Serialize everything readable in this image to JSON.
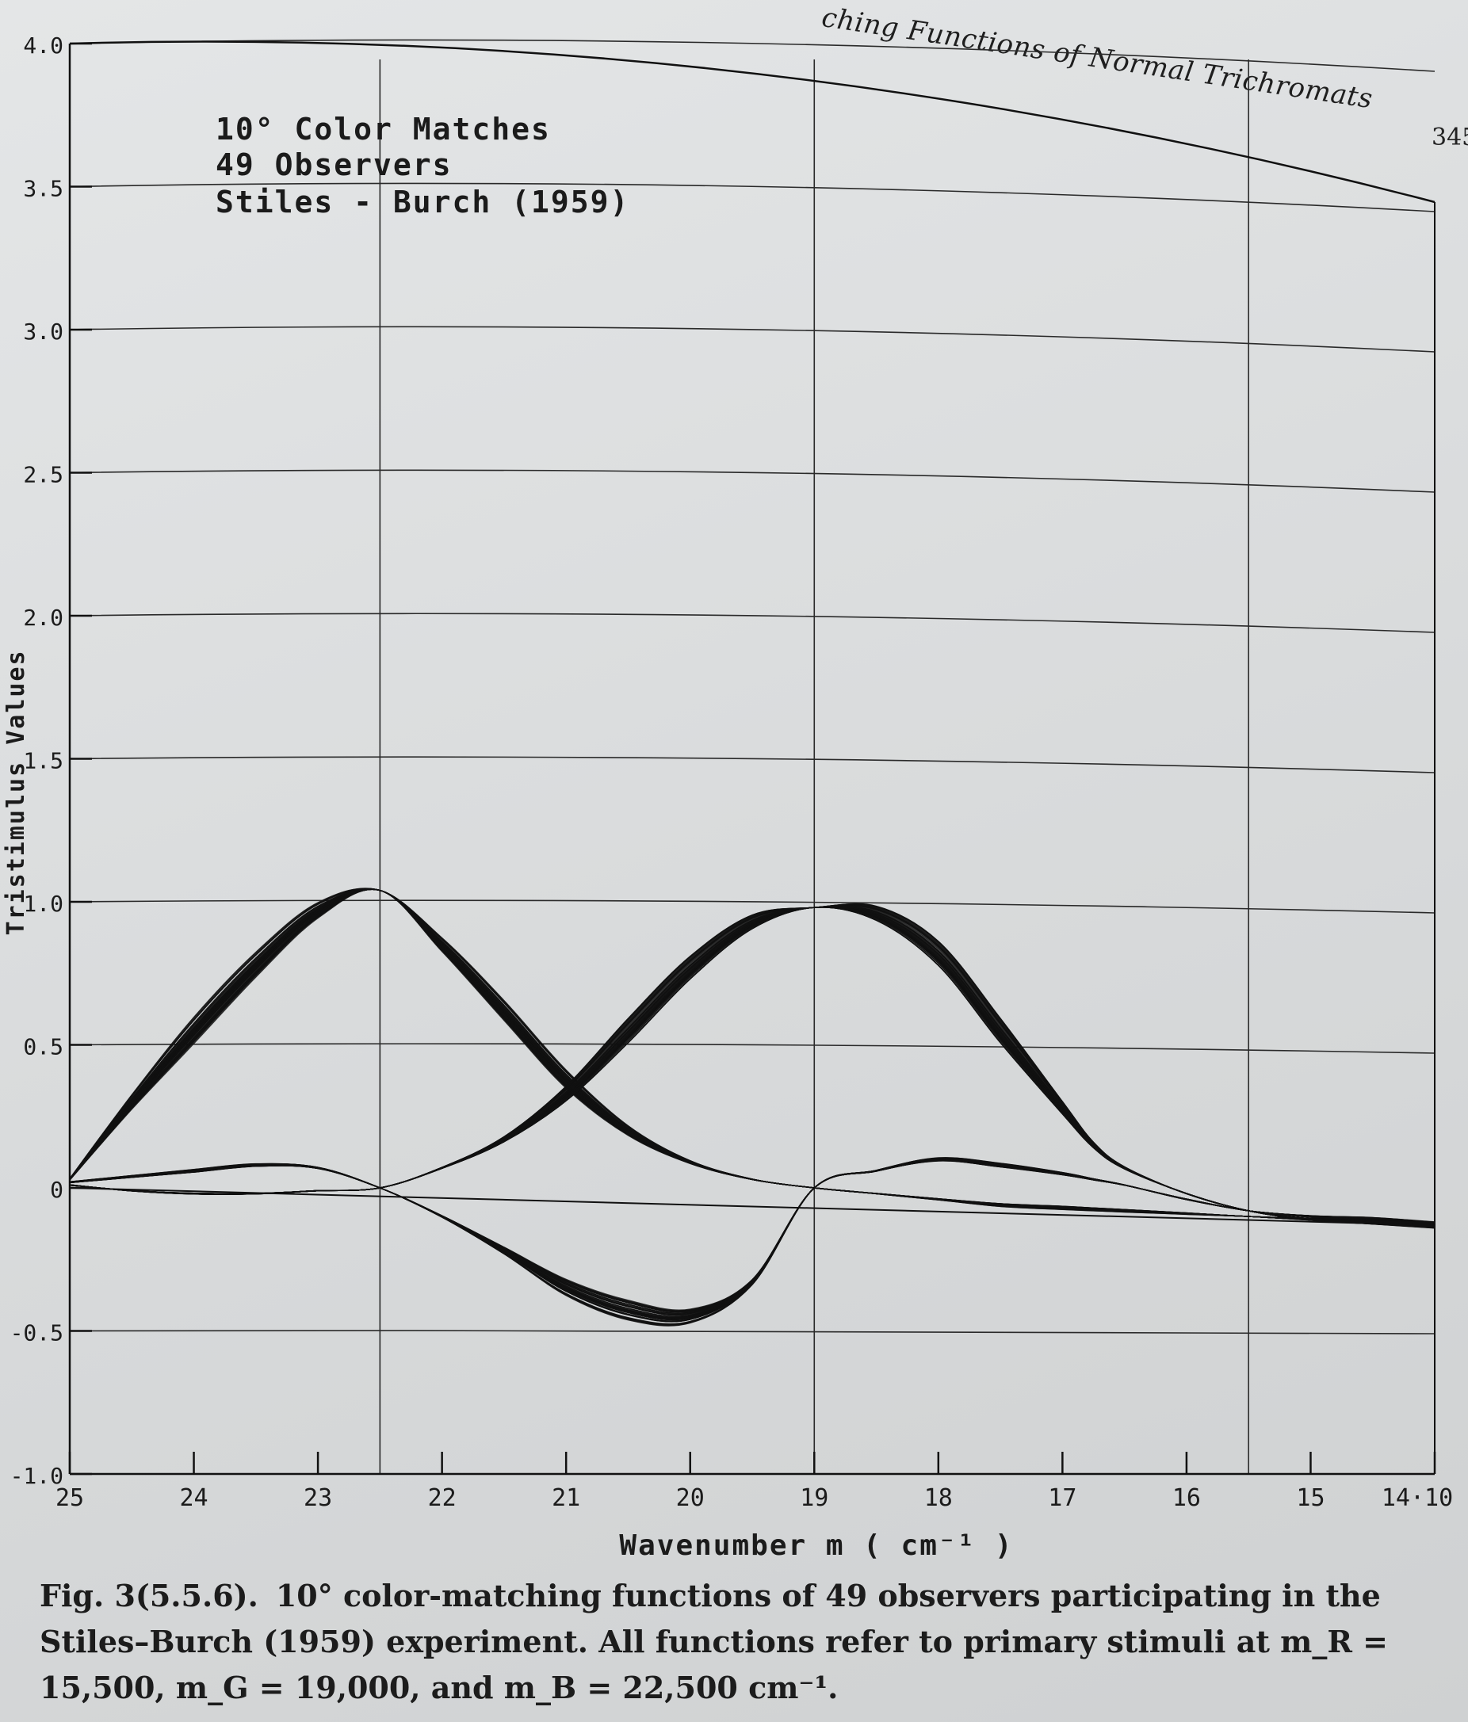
{
  "running_head": "ching Functions of Normal Trichromats",
  "page_number": "345",
  "annotation": {
    "line1": "10° Color Matches",
    "line2": "49 Observers",
    "line3": "Stiles - Burch (1959)"
  },
  "caption": {
    "label": "Fig. 3(5.5.6).",
    "text": "10° color-matching functions of 49 observers participating in the Stiles–Burch (1959) experiment. All functions refer to primary stimuli at m_R = 15,500, m_G = 19,000, and m_B = 22,500 cm⁻¹."
  },
  "colors": {
    "ink": "#111111",
    "grid": "#2a2a2a",
    "paper": "#dcdedf"
  },
  "chart_data": {
    "type": "line",
    "title": "10° Color Matches 49 Observers Stiles - Burch (1959)",
    "xlabel": "Wavenumber m ( cm⁻¹ )",
    "ylabel": "Tristimulus Values",
    "xlim": [
      25,
      14
    ],
    "ylim": [
      -1.0,
      4.0
    ],
    "x_reversed": true,
    "x_ticks": [
      25,
      24,
      23,
      22,
      21,
      20,
      19,
      18,
      17,
      16,
      15,
      14
    ],
    "x_tick_labels": [
      "25",
      "24",
      "23",
      "22",
      "21",
      "20",
      "19",
      "18",
      "17",
      "16",
      "15",
      "14·10"
    ],
    "y_ticks": [
      -1.0,
      -0.5,
      0,
      0.5,
      1.0,
      1.5,
      2.0,
      2.5,
      3.0,
      3.5,
      4.0
    ],
    "y_tick_labels": [
      "-1.0",
      "-0.5",
      "0",
      "0.5",
      "1.0",
      "1.5",
      "2.0",
      "2.5",
      "3.0",
      "3.5",
      "4.0"
    ],
    "grid": true,
    "observers": 49,
    "x": [
      25,
      24.5,
      24,
      23.5,
      23,
      22.5,
      22,
      21.5,
      21,
      20.5,
      20,
      19.5,
      19,
      18.5,
      18,
      17.5,
      17,
      16.75,
      16.5,
      16,
      15.5,
      15,
      14.5,
      14
    ],
    "series": [
      {
        "values": [
          0.03,
          0.3,
          0.55,
          0.78,
          0.97,
          1.04,
          0.85,
          0.62,
          0.38,
          0.2,
          0.09,
          0.03,
          0.0,
          -0.02,
          -0.04,
          -0.06,
          -0.07,
          -0.075,
          -0.08,
          -0.09,
          -0.1,
          -0.11,
          -0.12,
          -0.13
        ]
      },
      {
        "values": [
          0.02,
          0.04,
          0.06,
          0.08,
          0.07,
          0.0,
          -0.1,
          -0.22,
          -0.35,
          -0.43,
          -0.45,
          -0.33,
          0.0,
          0.06,
          0.1,
          0.08,
          0.05,
          0.03,
          0.01,
          -0.04,
          -0.08,
          -0.1,
          -0.11,
          -0.13
        ]
      },
      {
        "values": [
          0.01,
          -0.01,
          -0.02,
          -0.02,
          -0.01,
          0.0,
          0.07,
          0.17,
          0.33,
          0.55,
          0.77,
          0.93,
          0.98,
          0.96,
          0.82,
          0.55,
          0.28,
          0.15,
          0.07,
          -0.02,
          -0.08,
          -0.11,
          -0.12,
          -0.13
        ]
      }
    ]
  }
}
